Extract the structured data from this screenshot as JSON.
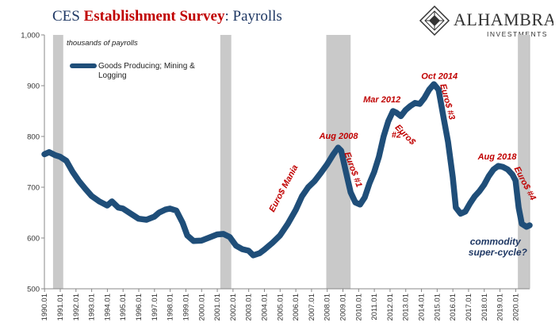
{
  "header": {
    "title_part1": "CES ",
    "title_part2": "Establishment Survey",
    "title_part3": ": Payrolls"
  },
  "brand": {
    "name": "ALHAMBRA",
    "sub": "INVESTMENTS",
    "color": "#1f3864"
  },
  "chart_data": {
    "type": "line",
    "units_label": "thousands of payrolls",
    "ylim": [
      500,
      1000
    ],
    "yticks": [
      500,
      600,
      700,
      800,
      900,
      1000
    ],
    "ytick_labels": [
      "500",
      "600",
      "700",
      "800",
      "900",
      "1,000"
    ],
    "xlim": [
      1990.0,
      2020.9
    ],
    "xtick_labels": [
      "1990.01",
      "1991.01",
      "1992.01",
      "1993.01",
      "1994.01",
      "1995.01",
      "1996.01",
      "1997.01",
      "1998.01",
      "1999.01",
      "2000.01",
      "2001.01",
      "2002.01",
      "2003.01",
      "2004.01",
      "2005.01",
      "2006.01",
      "2007.01",
      "2008.01",
      "2009.01",
      "2010.01",
      "2011.01",
      "2012.01",
      "2013.01",
      "2014.01",
      "2015.01",
      "2016.01",
      "2017.01",
      "2018.01",
      "2019.01",
      "2020.01"
    ],
    "recessions": [
      [
        1990.55,
        1991.2
      ],
      [
        2001.2,
        2001.9
      ],
      [
        2007.95,
        2009.5
      ],
      [
        2020.15,
        2020.9
      ]
    ],
    "series": [
      {
        "name": "Goods Producing; Mining & Logging",
        "color": "#1f4e79",
        "points": [
          [
            1990.0,
            765
          ],
          [
            1990.3,
            769
          ],
          [
            1990.7,
            763
          ],
          [
            1991.0,
            760
          ],
          [
            1991.4,
            752
          ],
          [
            1991.8,
            730
          ],
          [
            1992.2,
            712
          ],
          [
            1992.6,
            697
          ],
          [
            1993.0,
            683
          ],
          [
            1993.5,
            672
          ],
          [
            1994.0,
            664
          ],
          [
            1994.3,
            672
          ],
          [
            1994.7,
            660
          ],
          [
            1995.0,
            658
          ],
          [
            1995.5,
            648
          ],
          [
            1996.0,
            638
          ],
          [
            1996.5,
            636
          ],
          [
            1997.0,
            642
          ],
          [
            1997.3,
            650
          ],
          [
            1997.7,
            656
          ],
          [
            1998.0,
            658
          ],
          [
            1998.4,
            654
          ],
          [
            1998.8,
            630
          ],
          [
            1999.1,
            605
          ],
          [
            1999.5,
            594
          ],
          [
            2000.0,
            595
          ],
          [
            2000.5,
            601
          ],
          [
            2001.0,
            607
          ],
          [
            2001.4,
            608
          ],
          [
            2001.8,
            602
          ],
          [
            2002.2,
            585
          ],
          [
            2002.6,
            578
          ],
          [
            2003.0,
            575
          ],
          [
            2003.3,
            566
          ],
          [
            2003.7,
            570
          ],
          [
            2004.0,
            577
          ],
          [
            2004.5,
            590
          ],
          [
            2005.0,
            605
          ],
          [
            2005.5,
            628
          ],
          [
            2006.0,
            655
          ],
          [
            2006.4,
            682
          ],
          [
            2006.8,
            700
          ],
          [
            2007.2,
            712
          ],
          [
            2007.6,
            728
          ],
          [
            2008.0,
            745
          ],
          [
            2008.4,
            765
          ],
          [
            2008.7,
            778
          ],
          [
            2008.9,
            772
          ],
          [
            2009.2,
            730
          ],
          [
            2009.5,
            690
          ],
          [
            2009.8,
            670
          ],
          [
            2010.1,
            666
          ],
          [
            2010.4,
            680
          ],
          [
            2010.7,
            708
          ],
          [
            2011.0,
            730
          ],
          [
            2011.3,
            760
          ],
          [
            2011.6,
            800
          ],
          [
            2011.9,
            830
          ],
          [
            2012.2,
            850
          ],
          [
            2012.4,
            847
          ],
          [
            2012.7,
            840
          ],
          [
            2013.0,
            852
          ],
          [
            2013.3,
            860
          ],
          [
            2013.6,
            866
          ],
          [
            2013.9,
            864
          ],
          [
            2014.2,
            876
          ],
          [
            2014.5,
            892
          ],
          [
            2014.8,
            903
          ],
          [
            2015.1,
            892
          ],
          [
            2015.4,
            840
          ],
          [
            2015.7,
            790
          ],
          [
            2016.0,
            720
          ],
          [
            2016.2,
            660
          ],
          [
            2016.5,
            648
          ],
          [
            2016.8,
            652
          ],
          [
            2017.1,
            668
          ],
          [
            2017.4,
            682
          ],
          [
            2017.7,
            692
          ],
          [
            2018.0,
            705
          ],
          [
            2018.3,
            722
          ],
          [
            2018.6,
            735
          ],
          [
            2018.9,
            742
          ],
          [
            2019.2,
            740
          ],
          [
            2019.5,
            735
          ],
          [
            2019.8,
            725
          ],
          [
            2020.0,
            713
          ],
          [
            2020.2,
            660
          ],
          [
            2020.4,
            628
          ],
          [
            2020.7,
            622
          ],
          [
            2020.9,
            625
          ]
        ]
      }
    ],
    "annotations": [
      {
        "text": "Euro$ Mania",
        "x": 2004.6,
        "y": 650,
        "rotate": -62,
        "style": "red"
      },
      {
        "text": "Aug 2008",
        "x": 2007.5,
        "y": 795,
        "rotate": 0,
        "style": "red"
      },
      {
        "text": "Euro$ #1",
        "x": 2009.1,
        "y": 767,
        "rotate": 70,
        "style": "red"
      },
      {
        "text": "Mar 2012",
        "x": 2010.3,
        "y": 867,
        "rotate": 0,
        "style": "red"
      },
      {
        "text": "Euro$",
        "x": 2012.3,
        "y": 817,
        "rotate": 45,
        "style": "red"
      },
      {
        "text": "#2",
        "x": 2012.1,
        "y": 798,
        "rotate": 0,
        "style": "red"
      },
      {
        "text": "Oct 2014",
        "x": 2014.0,
        "y": 913,
        "rotate": 0,
        "style": "red"
      },
      {
        "text": "Euro$ #3",
        "x": 2015.2,
        "y": 902,
        "rotate": 75,
        "style": "red"
      },
      {
        "text": "Aug 2018",
        "x": 2017.6,
        "y": 755,
        "rotate": 0,
        "style": "red"
      },
      {
        "text": "Euro$ #4",
        "x": 2019.9,
        "y": 737,
        "rotate": 62,
        "style": "red"
      },
      {
        "text": "commodity",
        "x": 2017.1,
        "y": 587,
        "rotate": 0,
        "style": "blue"
      },
      {
        "text": "super-cycle?",
        "x": 2017.0,
        "y": 566,
        "rotate": 0,
        "style": "blue"
      }
    ],
    "legend_position": "top-left",
    "grid": false
  }
}
